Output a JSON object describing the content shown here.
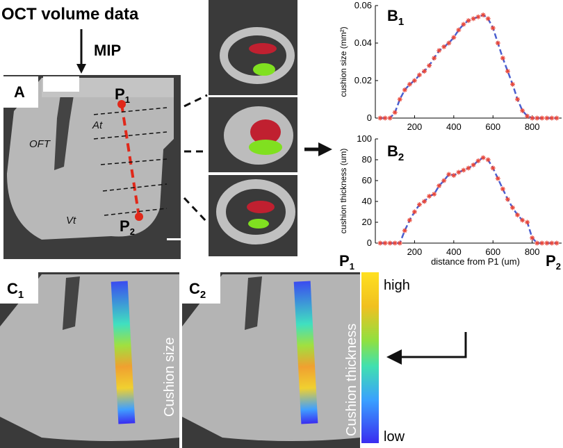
{
  "chart_data": [
    {
      "type": "line",
      "ylabel": "cushion size (mm²)",
      "xlim": [
        0,
        950
      ],
      "xticks": [
        200,
        400,
        600,
        800
      ],
      "ylim": [
        0,
        0.06
      ],
      "yticks": [
        0,
        0.02,
        0.04,
        0.06
      ],
      "x": [
        25,
        50,
        75,
        100,
        125,
        150,
        175,
        200,
        225,
        250,
        275,
        300,
        325,
        350,
        375,
        400,
        425,
        450,
        475,
        500,
        525,
        550,
        575,
        600,
        625,
        650,
        675,
        700,
        725,
        750,
        775,
        800,
        825,
        850,
        875,
        900,
        925
      ],
      "series": [
        {
          "color": "#4a5fd0",
          "marker_color": "#e8473a",
          "values": [
            0,
            0,
            0,
            0.003,
            0.01,
            0.015,
            0.018,
            0.02,
            0.023,
            0.025,
            0.028,
            0.032,
            0.036,
            0.038,
            0.04,
            0.043,
            0.047,
            0.05,
            0.052,
            0.053,
            0.054,
            0.055,
            0.053,
            0.048,
            0.04,
            0.032,
            0.025,
            0.018,
            0.01,
            0.004,
            0.001,
            0,
            0,
            0,
            0,
            0,
            0
          ]
        }
      ]
    },
    {
      "type": "line",
      "ylabel": "cushion thickness (um)",
      "xlabel": "distance from P1 (um)",
      "xlim": [
        0,
        950
      ],
      "xticks": [
        200,
        400,
        600,
        800
      ],
      "ylim": [
        0,
        100
      ],
      "yticks": [
        0,
        20,
        40,
        60,
        80,
        100
      ],
      "x": [
        25,
        50,
        75,
        100,
        125,
        150,
        175,
        200,
        225,
        250,
        275,
        300,
        325,
        350,
        375,
        400,
        425,
        450,
        475,
        500,
        525,
        550,
        575,
        600,
        625,
        650,
        675,
        700,
        725,
        750,
        775,
        800,
        825,
        850,
        875,
        900,
        925
      ],
      "series": [
        {
          "color": "#4a5fd0",
          "marker_color": "#e8473a",
          "values": [
            0,
            0,
            0,
            0,
            0,
            12,
            22,
            30,
            37,
            40,
            45,
            47,
            55,
            60,
            66,
            65,
            68,
            70,
            72,
            75,
            79,
            82,
            80,
            72,
            62,
            52,
            42,
            34,
            27,
            22,
            20,
            5,
            0,
            0,
            0,
            0,
            0
          ]
        }
      ]
    }
  ],
  "labels": {
    "source": "OCT volume data",
    "projection": "MIP",
    "panel_a": "A",
    "p1": {
      "main": "P",
      "sub": "1"
    },
    "p2": {
      "main": "P",
      "sub": "2"
    },
    "at": "At",
    "oft": "OFT",
    "vt": "Vt",
    "panel_b1": {
      "main": "B",
      "sub": "1"
    },
    "panel_b2": {
      "main": "B",
      "sub": "2"
    },
    "axis_p1": {
      "main": "P",
      "sub": "1"
    },
    "axis_p2": {
      "main": "P",
      "sub": "2"
    },
    "panel_c1": {
      "main": "C",
      "sub": "1"
    },
    "panel_c2": {
      "main": "C",
      "sub": "2"
    },
    "c1_caption": "Cushion size",
    "c2_caption": "Cushion thickness",
    "high": "high",
    "low": "low"
  }
}
